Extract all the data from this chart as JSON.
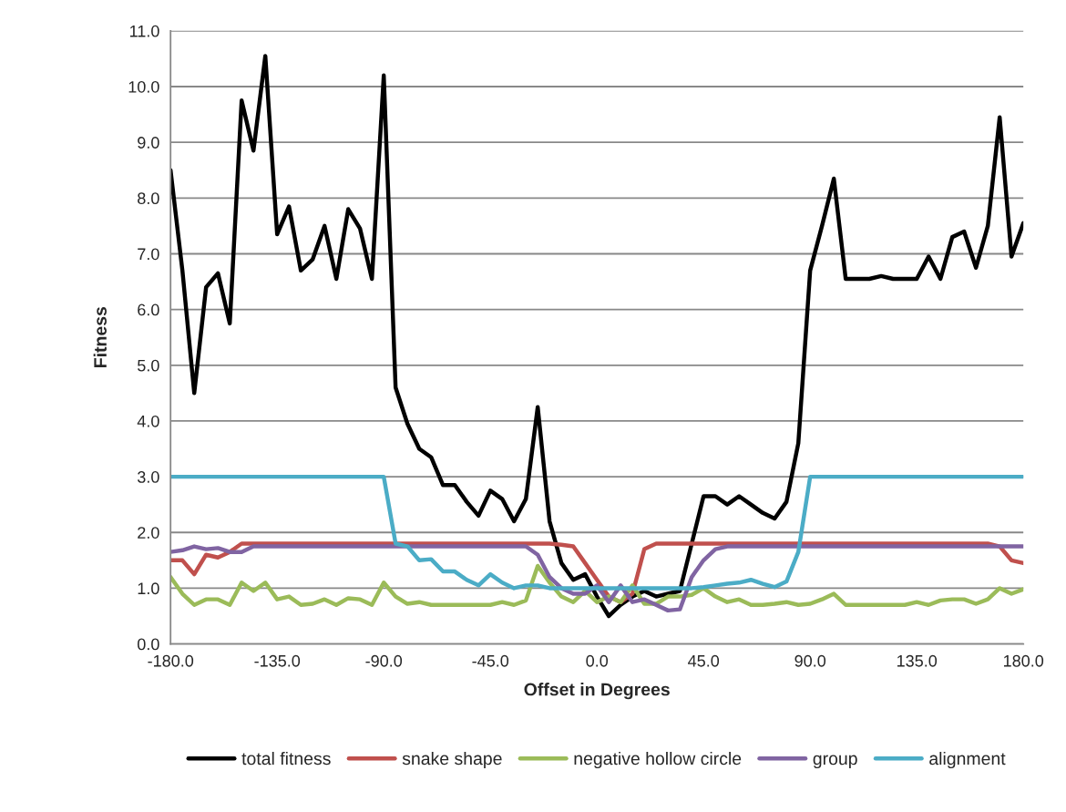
{
  "chart_data": {
    "type": "line",
    "xlabel": "Offset in Degrees",
    "ylabel": "Fitness",
    "x": [
      -180,
      -175,
      -170,
      -165,
      -160,
      -155,
      -150,
      -145,
      -140,
      -135,
      -130,
      -125,
      -120,
      -115,
      -110,
      -105,
      -100,
      -95,
      -90,
      -85,
      -80,
      -75,
      -70,
      -65,
      -60,
      -55,
      -50,
      -45,
      -40,
      -35,
      -30,
      -25,
      -20,
      -15,
      -10,
      -5,
      0,
      5,
      10,
      15,
      20,
      25,
      30,
      35,
      40,
      45,
      50,
      55,
      60,
      65,
      70,
      75,
      80,
      85,
      90,
      95,
      100,
      105,
      110,
      115,
      120,
      125,
      130,
      135,
      140,
      145,
      150,
      155,
      160,
      165,
      170,
      175,
      180
    ],
    "series": [
      {
        "name": "total fitness",
        "color": "#000000",
        "values": [
          8.5,
          6.7,
          4.5,
          6.4,
          6.65,
          5.75,
          9.75,
          8.85,
          10.55,
          7.35,
          7.85,
          6.7,
          6.9,
          7.5,
          6.55,
          7.8,
          7.45,
          6.55,
          10.2,
          4.6,
          3.95,
          3.5,
          3.35,
          2.85,
          2.85,
          2.55,
          2.3,
          2.75,
          2.6,
          2.2,
          2.6,
          4.25,
          2.2,
          1.45,
          1.15,
          1.25,
          0.85,
          0.5,
          0.7,
          0.85,
          0.95,
          0.85,
          0.9,
          0.95,
          1.8,
          2.65,
          2.65,
          2.5,
          2.65,
          2.5,
          2.35,
          2.25,
          2.55,
          3.6,
          6.7,
          7.5,
          8.35,
          6.55,
          6.55,
          6.55,
          6.6,
          6.55,
          6.55,
          6.55,
          6.95,
          6.55,
          7.3,
          7.4,
          6.75,
          7.5,
          9.45,
          6.95,
          7.55
        ]
      },
      {
        "name": "snake shape",
        "color": "#c0504d",
        "values": [
          1.5,
          1.5,
          1.25,
          1.6,
          1.55,
          1.65,
          1.8,
          1.8,
          1.8,
          1.8,
          1.8,
          1.8,
          1.8,
          1.8,
          1.8,
          1.8,
          1.8,
          1.8,
          1.8,
          1.8,
          1.8,
          1.8,
          1.8,
          1.8,
          1.8,
          1.8,
          1.8,
          1.8,
          1.8,
          1.8,
          1.8,
          1.8,
          1.8,
          1.78,
          1.75,
          1.45,
          1.15,
          0.85,
          0.75,
          0.9,
          1.7,
          1.8,
          1.8,
          1.8,
          1.8,
          1.8,
          1.8,
          1.8,
          1.8,
          1.8,
          1.8,
          1.8,
          1.8,
          1.8,
          1.8,
          1.8,
          1.8,
          1.8,
          1.8,
          1.8,
          1.8,
          1.8,
          1.8,
          1.8,
          1.8,
          1.8,
          1.8,
          1.8,
          1.8,
          1.8,
          1.75,
          1.5,
          1.45
        ]
      },
      {
        "name": "negative hollow circle",
        "color": "#9bbb59",
        "values": [
          1.2,
          0.9,
          0.7,
          0.8,
          0.8,
          0.7,
          1.1,
          0.95,
          1.1,
          0.8,
          0.85,
          0.7,
          0.72,
          0.8,
          0.7,
          0.82,
          0.8,
          0.7,
          1.1,
          0.85,
          0.72,
          0.75,
          0.7,
          0.7,
          0.7,
          0.7,
          0.7,
          0.7,
          0.75,
          0.7,
          0.78,
          1.4,
          1.1,
          0.85,
          0.75,
          0.95,
          0.75,
          0.85,
          0.75,
          1.05,
          0.72,
          0.72,
          0.85,
          0.85,
          0.88,
          1.0,
          0.85,
          0.75,
          0.8,
          0.7,
          0.7,
          0.72,
          0.75,
          0.7,
          0.72,
          0.8,
          0.9,
          0.7,
          0.7,
          0.7,
          0.7,
          0.7,
          0.7,
          0.75,
          0.7,
          0.78,
          0.8,
          0.8,
          0.72,
          0.8,
          1.0,
          0.9,
          0.98
        ]
      },
      {
        "name": "group",
        "color": "#8064a2",
        "values": [
          1.65,
          1.68,
          1.75,
          1.7,
          1.72,
          1.65,
          1.65,
          1.75,
          1.75,
          1.75,
          1.75,
          1.75,
          1.75,
          1.75,
          1.75,
          1.75,
          1.75,
          1.75,
          1.75,
          1.75,
          1.75,
          1.75,
          1.75,
          1.75,
          1.75,
          1.75,
          1.75,
          1.75,
          1.75,
          1.75,
          1.75,
          1.6,
          1.2,
          1.0,
          0.9,
          0.9,
          1.05,
          0.75,
          1.05,
          0.75,
          0.8,
          0.7,
          0.6,
          0.62,
          1.2,
          1.5,
          1.7,
          1.75,
          1.75,
          1.75,
          1.75,
          1.75,
          1.75,
          1.75,
          1.75,
          1.75,
          1.75,
          1.75,
          1.75,
          1.75,
          1.75,
          1.75,
          1.75,
          1.75,
          1.75,
          1.75,
          1.75,
          1.75,
          1.75,
          1.75,
          1.75,
          1.75,
          1.75
        ]
      },
      {
        "name": "alignment",
        "color": "#4bacc6",
        "values": [
          3.0,
          3.0,
          3.0,
          3.0,
          3.0,
          3.0,
          3.0,
          3.0,
          3.0,
          3.0,
          3.0,
          3.0,
          3.0,
          3.0,
          3.0,
          3.0,
          3.0,
          3.0,
          3.0,
          1.8,
          1.75,
          1.5,
          1.52,
          1.3,
          1.3,
          1.15,
          1.05,
          1.25,
          1.1,
          1.0,
          1.05,
          1.05,
          1.0,
          1.0,
          1.0,
          1.0,
          1.0,
          1.0,
          1.0,
          1.0,
          1.0,
          1.0,
          1.0,
          1.0,
          1.0,
          1.02,
          1.05,
          1.08,
          1.1,
          1.15,
          1.08,
          1.02,
          1.12,
          1.65,
          3.0,
          3.0,
          3.0,
          3.0,
          3.0,
          3.0,
          3.0,
          3.0,
          3.0,
          3.0,
          3.0,
          3.0,
          3.0,
          3.0,
          3.0,
          3.0,
          3.0,
          3.0,
          3.0
        ]
      }
    ],
    "xlim": [
      -180,
      180
    ],
    "xticks": [
      {
        "value": -180,
        "label": "-180.0"
      },
      {
        "value": -135,
        "label": "-135.0"
      },
      {
        "value": -90,
        "label": "-90.0"
      },
      {
        "value": -45,
        "label": "-45.0"
      },
      {
        "value": 0,
        "label": "0.0"
      },
      {
        "value": 45,
        "label": "45.0"
      },
      {
        "value": 90,
        "label": "90.0"
      },
      {
        "value": 135,
        "label": "135.0"
      },
      {
        "value": 180,
        "label": "180.0"
      }
    ],
    "ylim": [
      0,
      11
    ],
    "yticks": [
      {
        "value": 0,
        "label": "0.0"
      },
      {
        "value": 1,
        "label": "1.0"
      },
      {
        "value": 2,
        "label": "2.0"
      },
      {
        "value": 3,
        "label": "3.0"
      },
      {
        "value": 4,
        "label": "4.0"
      },
      {
        "value": 5,
        "label": "5.0"
      },
      {
        "value": 6,
        "label": "6.0"
      },
      {
        "value": 7,
        "label": "7.0"
      },
      {
        "value": 8,
        "label": "8.0"
      },
      {
        "value": 9,
        "label": "9.0"
      },
      {
        "value": 10,
        "label": "10.0"
      },
      {
        "value": 11,
        "label": "11.0"
      }
    ],
    "grid": "y",
    "legend": "bottom",
    "line_style": "solid",
    "marker": "none"
  }
}
